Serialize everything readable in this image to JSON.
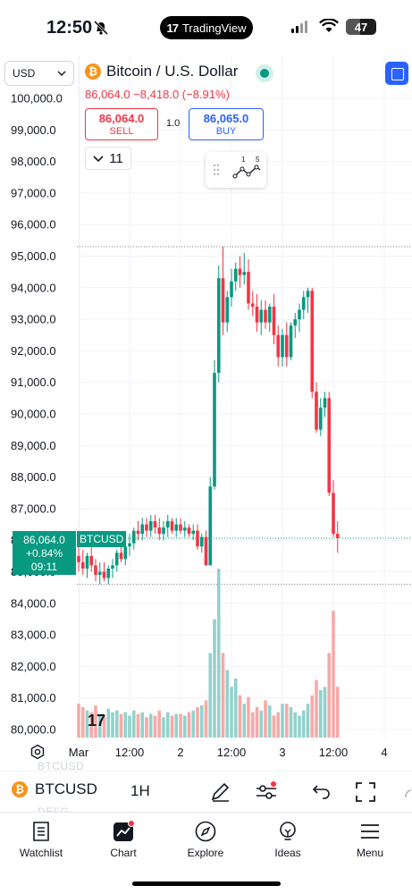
{
  "status_bar": {
    "time": "12:50",
    "app_pill": "TradingView",
    "battery": "47"
  },
  "header": {
    "currency": "USD",
    "title": "Bitcoin / U.S. Dollar",
    "price_change": "86,064.0 −8,418.0 (−8.91%)",
    "sell_price": "86,064.0",
    "sell_label": "SELL",
    "buy_price": "86,065.0",
    "buy_label": "BUY",
    "spread": "1.0",
    "interval_count": "11",
    "widget_nums": [
      "1",
      "5"
    ]
  },
  "price_axis": {
    "ticks": [
      "100,000.0",
      "99,000.0",
      "98,000.0",
      "97,000.0",
      "96,000.0",
      "95,000.0",
      "94,000.0",
      "93,000.0",
      "92,000.0",
      "91,000.0",
      "90,000.0",
      "89,000.0",
      "88,000.0",
      "87,000.0",
      "86,000.0",
      "85,000.0",
      "84,000.0",
      "83,000.0",
      "82,000.0",
      "81,000.0",
      "80,000.0"
    ]
  },
  "time_axis": {
    "ticks": [
      "Mar",
      "12:00",
      "2",
      "12:00",
      "3",
      "12:00",
      "4"
    ]
  },
  "last_price": {
    "price": "86,064.0",
    "change": "+0.84%",
    "countdown": "09:11",
    "symbol": "BTCUSD"
  },
  "ghost_labels": [
    "BTCUSD",
    "DEFG"
  ],
  "toolbar": {
    "symbol": "BTCUSD",
    "interval": "1H"
  },
  "nav": {
    "items": [
      {
        "label": "Watchlist",
        "icon": "watchlist-icon"
      },
      {
        "label": "Chart",
        "icon": "chart-icon"
      },
      {
        "label": "Explore",
        "icon": "compass-icon"
      },
      {
        "label": "Ideas",
        "icon": "lightbulb-icon"
      },
      {
        "label": "Menu",
        "icon": "hamburger-icon"
      }
    ]
  },
  "colors": {
    "up": "#089981",
    "down": "#f23645",
    "accent": "#2962ff",
    "vol_up": "#92d2cc",
    "vol_down": "#f7a9a7"
  },
  "chart_data": {
    "type": "candlestick",
    "symbol": "BTCUSD",
    "interval": "1H",
    "ylim": [
      79700,
      100400
    ],
    "high_line": 95300,
    "low_line": 84600,
    "last_price": 86064,
    "x_ticks": [
      {
        "label": "Mar",
        "index": 0
      },
      {
        "label": "12:00",
        "index": 12
      },
      {
        "label": "2",
        "index": 24
      },
      {
        "label": "12:00",
        "index": 36
      },
      {
        "label": "3",
        "index": 48
      },
      {
        "label": "12:00",
        "index": 60
      },
      {
        "label": "4",
        "index": 72
      }
    ],
    "candles": [
      {
        "o": 85500,
        "h": 85900,
        "l": 85000,
        "c": 85300
      },
      {
        "o": 85300,
        "h": 85700,
        "l": 84900,
        "c": 85100
      },
      {
        "o": 85100,
        "h": 85600,
        "l": 84800,
        "c": 85500
      },
      {
        "o": 85500,
        "h": 85800,
        "l": 85000,
        "c": 85200
      },
      {
        "o": 85200,
        "h": 85400,
        "l": 84700,
        "c": 84900
      },
      {
        "o": 84900,
        "h": 85300,
        "l": 84600,
        "c": 85000
      },
      {
        "o": 85000,
        "h": 85300,
        "l": 84700,
        "c": 84800
      },
      {
        "o": 84800,
        "h": 85200,
        "l": 84600,
        "c": 85100
      },
      {
        "o": 85100,
        "h": 85400,
        "l": 84800,
        "c": 85200
      },
      {
        "o": 85200,
        "h": 85700,
        "l": 85000,
        "c": 85600
      },
      {
        "o": 85600,
        "h": 85900,
        "l": 85300,
        "c": 85400
      },
      {
        "o": 85400,
        "h": 85900,
        "l": 85200,
        "c": 85800
      },
      {
        "o": 85800,
        "h": 86200,
        "l": 85500,
        "c": 85900
      },
      {
        "o": 85900,
        "h": 86400,
        "l": 85700,
        "c": 86300
      },
      {
        "o": 86300,
        "h": 86600,
        "l": 86000,
        "c": 86200
      },
      {
        "o": 86200,
        "h": 86700,
        "l": 86000,
        "c": 86500
      },
      {
        "o": 86500,
        "h": 86700,
        "l": 86100,
        "c": 86300
      },
      {
        "o": 86300,
        "h": 86800,
        "l": 86100,
        "c": 86600
      },
      {
        "o": 86600,
        "h": 86800,
        "l": 86200,
        "c": 86400
      },
      {
        "o": 86400,
        "h": 86700,
        "l": 86000,
        "c": 86200
      },
      {
        "o": 86200,
        "h": 86600,
        "l": 86000,
        "c": 86400
      },
      {
        "o": 86400,
        "h": 86800,
        "l": 86100,
        "c": 86600
      },
      {
        "o": 86600,
        "h": 86700,
        "l": 86200,
        "c": 86300
      },
      {
        "o": 86300,
        "h": 86700,
        "l": 86100,
        "c": 86500
      },
      {
        "o": 86500,
        "h": 86700,
        "l": 86200,
        "c": 86300
      },
      {
        "o": 86300,
        "h": 86600,
        "l": 86100,
        "c": 86400
      },
      {
        "o": 86400,
        "h": 86500,
        "l": 86100,
        "c": 86200
      },
      {
        "o": 86200,
        "h": 86500,
        "l": 86000,
        "c": 86300
      },
      {
        "o": 86300,
        "h": 86500,
        "l": 85700,
        "c": 85800
      },
      {
        "o": 85800,
        "h": 86200,
        "l": 85600,
        "c": 86100
      },
      {
        "o": 86100,
        "h": 86300,
        "l": 85200,
        "c": 85200
      },
      {
        "o": 85200,
        "h": 88000,
        "l": 85200,
        "c": 87700
      },
      {
        "o": 87700,
        "h": 91700,
        "l": 87600,
        "c": 91300
      },
      {
        "o": 91300,
        "h": 94700,
        "l": 91000,
        "c": 94300
      },
      {
        "o": 94300,
        "h": 95300,
        "l": 92500,
        "c": 92900
      },
      {
        "o": 92900,
        "h": 93900,
        "l": 92600,
        "c": 93700
      },
      {
        "o": 93700,
        "h": 94600,
        "l": 93400,
        "c": 94200
      },
      {
        "o": 94200,
        "h": 94800,
        "l": 93900,
        "c": 94600
      },
      {
        "o": 94600,
        "h": 95000,
        "l": 94000,
        "c": 94400
      },
      {
        "o": 94400,
        "h": 95100,
        "l": 94100,
        "c": 94500
      },
      {
        "o": 94500,
        "h": 94900,
        "l": 93300,
        "c": 93500
      },
      {
        "o": 93500,
        "h": 93900,
        "l": 93100,
        "c": 93400
      },
      {
        "o": 93400,
        "h": 93800,
        "l": 92600,
        "c": 92900
      },
      {
        "o": 92900,
        "h": 93600,
        "l": 92500,
        "c": 93300
      },
      {
        "o": 93300,
        "h": 93600,
        "l": 92700,
        "c": 92900
      },
      {
        "o": 92900,
        "h": 93500,
        "l": 92600,
        "c": 93400
      },
      {
        "o": 93400,
        "h": 93800,
        "l": 92200,
        "c": 92500
      },
      {
        "o": 92500,
        "h": 92800,
        "l": 91500,
        "c": 91800
      },
      {
        "o": 91800,
        "h": 92700,
        "l": 91500,
        "c": 92500
      },
      {
        "o": 92500,
        "h": 92900,
        "l": 91500,
        "c": 91800
      },
      {
        "o": 91800,
        "h": 92900,
        "l": 91700,
        "c": 92800
      },
      {
        "o": 92800,
        "h": 93200,
        "l": 92400,
        "c": 93000
      },
      {
        "o": 93000,
        "h": 93500,
        "l": 92600,
        "c": 93300
      },
      {
        "o": 93300,
        "h": 93900,
        "l": 93000,
        "c": 93700
      },
      {
        "o": 93700,
        "h": 94000,
        "l": 93200,
        "c": 93900
      },
      {
        "o": 93900,
        "h": 94000,
        "l": 90500,
        "c": 90700
      },
      {
        "o": 90700,
        "h": 91000,
        "l": 89400,
        "c": 89500
      },
      {
        "o": 89500,
        "h": 90500,
        "l": 89300,
        "c": 90200
      },
      {
        "o": 90200,
        "h": 90700,
        "l": 89900,
        "c": 90500
      },
      {
        "o": 90500,
        "h": 90700,
        "l": 87400,
        "c": 87500
      },
      {
        "o": 87500,
        "h": 87900,
        "l": 86100,
        "c": 86200
      },
      {
        "o": 86200,
        "h": 86600,
        "l": 85600,
        "c": 86064
      }
    ],
    "volume": [
      2.0,
      1.8,
      1.6,
      1.5,
      1.9,
      1.4,
      1.3,
      1.7,
      1.5,
      1.6,
      1.4,
      1.5,
      1.3,
      1.6,
      1.4,
      1.5,
      1.2,
      1.4,
      1.3,
      1.6,
      1.2,
      1.5,
      1.3,
      1.4,
      1.4,
      1.3,
      1.5,
      1.6,
      1.8,
      1.9,
      2.2,
      5.0,
      7.0,
      10.0,
      5.0,
      4.0,
      3.0,
      3.5,
      2.5,
      2.0,
      2.4,
      1.5,
      1.8,
      1.6,
      2.2,
      1.9,
      1.3,
      1.5,
      2.0,
      2.0,
      1.8,
      1.5,
      1.3,
      1.6,
      2.0,
      2.5,
      3.4,
      2.8,
      3.0,
      5.0,
      7.5,
      3.0
    ]
  }
}
